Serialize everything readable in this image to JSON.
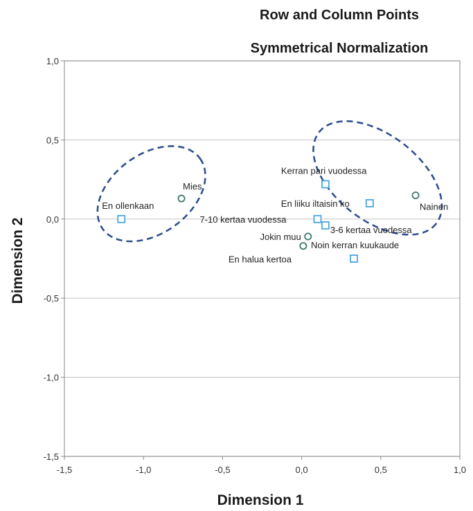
{
  "chart_data": {
    "type": "scatter",
    "title": "Row and Column Points",
    "subtitle": "Symmetrical Normalization",
    "xlabel": "Dimension 1",
    "ylabel": "Dimension 2",
    "xlim": [
      -1.5,
      1.0
    ],
    "ylim": [
      -1.5,
      1.0
    ],
    "x_ticks": [
      "-1,5",
      "-1,0",
      "-0,5",
      "0,0",
      "0,5",
      "1,0"
    ],
    "y_ticks": [
      "1,0",
      "0,5",
      "0,0",
      "-0,5",
      "-1,0",
      "-1,5"
    ],
    "grid": "horizontal",
    "colors": {
      "row_points": "#3c7a6e",
      "column_points": "#4aa6e0",
      "ellipse": "#2f4f8f",
      "gridline": "#cccccc"
    },
    "row_points": [
      {
        "label": "Mies",
        "x": -0.76,
        "y": 0.13
      },
      {
        "label": "Nainen",
        "x": 0.72,
        "y": 0.15
      },
      {
        "label": "Jokin muu",
        "x": 0.04,
        "y": -0.11
      },
      {
        "label": "En halua kertoa",
        "x": 0.01,
        "y": -0.17
      }
    ],
    "column_points": [
      {
        "label": "En ollenkaan",
        "x": -1.14,
        "y": 0.0
      },
      {
        "label": "Kerran pari vuodessa",
        "x": 0.15,
        "y": 0.22
      },
      {
        "label": "En liiku iltaisin ko",
        "x": 0.43,
        "y": 0.1
      },
      {
        "label": "7-10 kertaa vuodessa",
        "x": 0.1,
        "y": 0.0
      },
      {
        "label": "3-6 kertaa vuodessa",
        "x": 0.15,
        "y": -0.04
      },
      {
        "label": "Noin kerran kuukaude",
        "x": 0.33,
        "y": -0.25
      }
    ],
    "ellipses": [
      {
        "cx": -0.95,
        "cy": 0.16,
        "rx": 0.38,
        "ry": 0.25,
        "rotation_deg": -36
      },
      {
        "cx": 0.48,
        "cy": 0.26,
        "rx": 0.47,
        "ry": 0.27,
        "rotation_deg": 38
      }
    ]
  }
}
